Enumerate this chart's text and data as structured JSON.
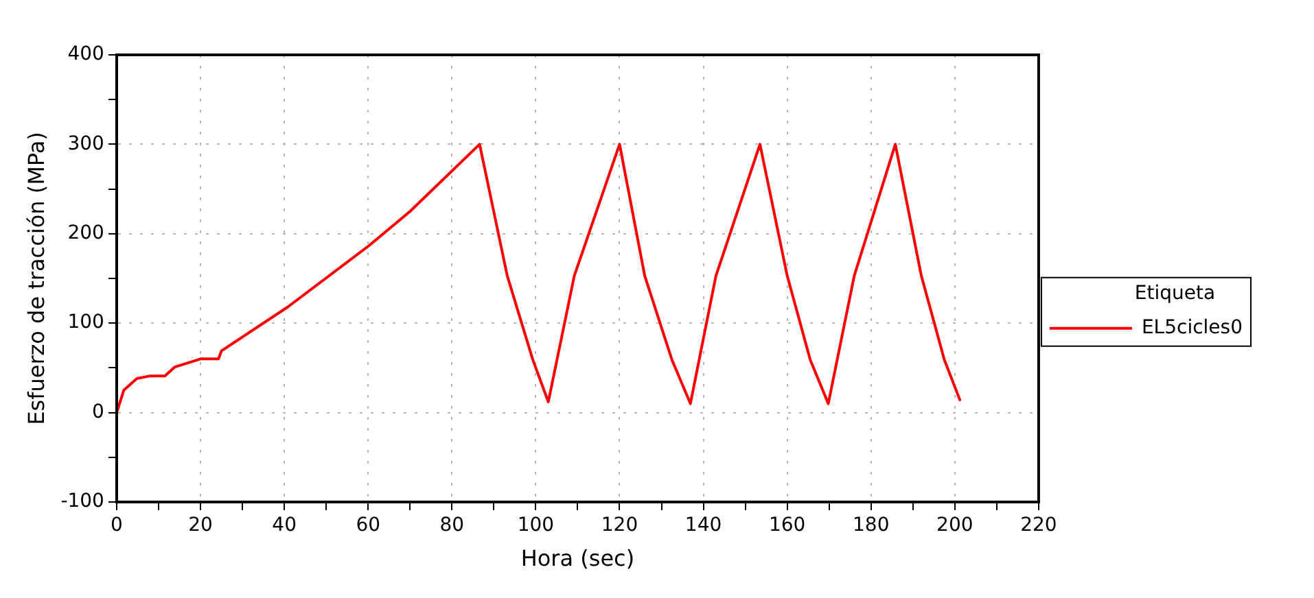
{
  "chart_data": {
    "type": "line",
    "xlabel": "Hora (sec)",
    "ylabel": "Esfuerzo de tracción (MPa)",
    "legend_title": "Etiqueta",
    "xlim": [
      0,
      220
    ],
    "ylim": [
      -100,
      400
    ],
    "xticks": [
      0,
      {
        "value": 10,
        "label": null
      },
      20,
      {
        "value": 30,
        "label": null
      },
      40,
      {
        "value": 50,
        "label": null
      },
      60,
      {
        "value": 70,
        "label": null
      },
      80,
      {
        "value": 90,
        "label": null
      },
      100,
      {
        "value": 110,
        "label": null
      },
      120,
      {
        "value": 130,
        "label": null
      },
      140,
      {
        "value": 150,
        "label": null
      },
      160,
      {
        "value": 170,
        "label": null
      },
      180,
      {
        "value": 190,
        "label": null
      },
      200,
      {
        "value": 210,
        "label": null
      },
      220
    ],
    "yticks": [
      -100,
      {
        "value": -50,
        "label": null
      },
      0,
      {
        "value": 50,
        "label": null
      },
      100,
      {
        "value": 150,
        "label": null
      },
      200,
      {
        "value": 250,
        "label": null
      },
      300,
      {
        "value": 350,
        "label": null
      },
      400
    ],
    "grid": true,
    "legend": "right",
    "marker": "none",
    "line_style": "solid",
    "series": [
      {
        "name": "EL5cicles0",
        "color": "#ff0000",
        "x": [
          0,
          1.7,
          4.8,
          8,
          11.5,
          13.9,
          20,
          24.3,
          25,
          40.8,
          60.3,
          70,
          86.6,
          93.2,
          99.3,
          103,
          109.2,
          120,
          126,
          132.5,
          136.9,
          143,
          153.5,
          160,
          165.5,
          169.8,
          176,
          185.8,
          192,
          197.5,
          201.3
        ],
        "values": [
          0,
          25,
          38,
          41,
          41,
          51,
          60,
          60,
          69,
          118,
          187,
          225,
          300,
          153,
          59,
          12,
          153,
          300,
          153,
          59,
          10,
          153,
          300,
          153,
          59,
          10,
          153,
          300,
          153,
          59,
          13
        ]
      }
    ]
  }
}
